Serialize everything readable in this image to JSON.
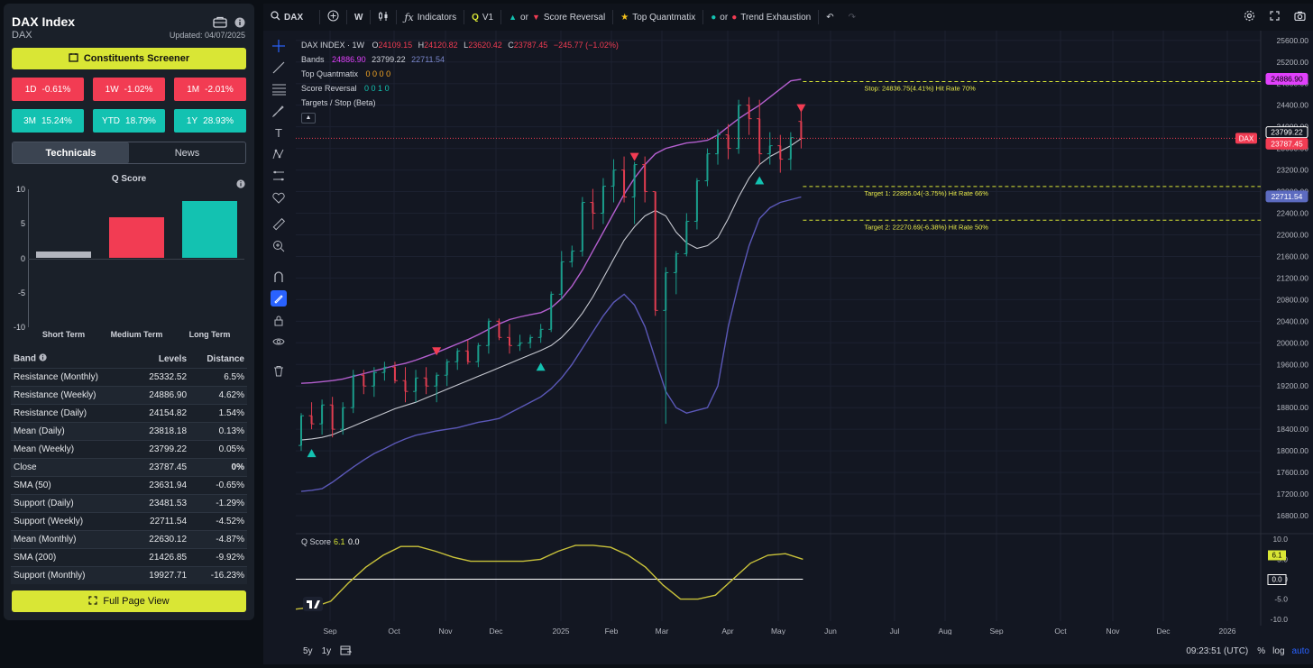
{
  "left_panel": {
    "title": "DAX Index",
    "subtitle": "DAX",
    "updated": "Updated: 04/07/2025",
    "screener_button": "Constituents Screener",
    "performance": [
      {
        "period": "1D",
        "value": "-0.61%",
        "color": "#f23c53"
      },
      {
        "period": "1W",
        "value": "-1.02%",
        "color": "#f23c53"
      },
      {
        "period": "1M",
        "value": "-2.01%",
        "color": "#f23c53"
      },
      {
        "period": "3M",
        "value": "15.24%",
        "color": "#13c2b1"
      },
      {
        "period": "YTD",
        "value": "18.79%",
        "color": "#13c2b1"
      },
      {
        "period": "1Y",
        "value": "28.93%",
        "color": "#13c2b1"
      }
    ],
    "tabs": [
      "Technicals",
      "News"
    ],
    "qscore_title": "Q Score",
    "qscore_axis": [
      "10",
      "5",
      "0",
      "-5",
      "-10"
    ],
    "qscore_bars": [
      {
        "label": "Short Term",
        "value": 1,
        "color": "#b2b5be"
      },
      {
        "label": "Medium Term",
        "value": 6,
        "color": "#f23c53"
      },
      {
        "label": "Long Term",
        "value": 8.3,
        "color": "#13c2b1"
      }
    ],
    "bands_header": {
      "band": "Band",
      "levels": "Levels",
      "distance": "Distance"
    },
    "bands": [
      {
        "band": "Resistance (Monthly)",
        "level": "25332.52",
        "distance": "6.5%",
        "sign": "pos"
      },
      {
        "band": "Resistance (Weekly)",
        "level": "24886.90",
        "distance": "4.62%",
        "sign": "pos"
      },
      {
        "band": "Resistance (Daily)",
        "level": "24154.82",
        "distance": "1.54%",
        "sign": "pos"
      },
      {
        "band": "Mean (Daily)",
        "level": "23818.18",
        "distance": "0.13%",
        "sign": "pos"
      },
      {
        "band": "Mean (Weekly)",
        "level": "23799.22",
        "distance": "0.05%",
        "sign": "pos"
      },
      {
        "band": "Close",
        "level": "23787.45",
        "distance": "0%",
        "sign": "neu"
      },
      {
        "band": "SMA (50)",
        "level": "23631.94",
        "distance": "-0.65%",
        "sign": "neg"
      },
      {
        "band": "Support (Daily)",
        "level": "23481.53",
        "distance": "-1.29%",
        "sign": "neg"
      },
      {
        "band": "Support (Weekly)",
        "level": "22711.54",
        "distance": "-4.52%",
        "sign": "neg"
      },
      {
        "band": "Mean (Monthly)",
        "level": "22630.12",
        "distance": "-4.87%",
        "sign": "neg"
      },
      {
        "band": "SMA (200)",
        "level": "21426.85",
        "distance": "-9.92%",
        "sign": "neg"
      },
      {
        "band": "Support (Monthly)",
        "level": "19927.71",
        "distance": "-16.23%",
        "sign": "neg"
      }
    ],
    "full_page_button": "Full Page View"
  },
  "toolbar": {
    "symbol": "DAX",
    "interval": "W",
    "indicators": "Indicators",
    "v1": "V1",
    "or": "or",
    "score_reversal": "Score Reversal",
    "top_quantmatix": "Top Quantmatix",
    "trend_exhaustion": "Trend Exhaustion"
  },
  "legend": {
    "symbol_line": "DAX INDEX · 1W",
    "o": "24109.15",
    "h": "24120.82",
    "l": "23620.42",
    "c": "23787.45",
    "chg": "−245.77 (−1.02%)",
    "bands_label": "Bands",
    "bands_values": [
      "24886.90",
      "23799.22",
      "22711.54"
    ],
    "top_q_label": "Top Quantmatix",
    "top_q_values": "0 0 0 0",
    "score_rev_label": "Score Reversal",
    "score_rev_values": "0 0 1 0",
    "targets_label": "Targets / Stop (Beta)"
  },
  "annotations": {
    "stop": "Stop: 24836.75(4.41%) Hit Rate 70%",
    "target1": "Target 1: 22895.04(-3.75%) Hit Rate 66%",
    "target2": "Target 2: 22270.69(-6.38%) Hit Rate 50%"
  },
  "price_axis": [
    "25600.00",
    "25200.00",
    "24800.00",
    "24400.00",
    "24000.00",
    "23600.00",
    "23200.00",
    "22800.00",
    "22400.00",
    "22000.00",
    "21600.00",
    "21200.00",
    "20800.00",
    "20400.00",
    "20000.00",
    "19600.00",
    "19200.00",
    "18800.00",
    "18400.00",
    "18000.00",
    "17600.00",
    "17200.00",
    "16800.00"
  ],
  "price_tags": [
    {
      "text": "24886.90",
      "color": "#e040fb"
    },
    {
      "text": "23799.22",
      "color": "#ffffff"
    },
    {
      "text": "23787.45",
      "color": "#f23c53"
    },
    {
      "text": "22711.54",
      "color": "#5c6bc0"
    }
  ],
  "dax_tag": "DAX",
  "time_axis": [
    "Sep",
    "Oct",
    "Nov",
    "Dec",
    "2025",
    "Feb",
    "Mar",
    "Apr",
    "May",
    "Jun",
    "Jul",
    "Aug",
    "Sep",
    "Oct",
    "Nov",
    "Dec",
    "2026"
  ],
  "qscore_pane": {
    "label": "Q Score",
    "value1": "6.1",
    "value2": "0.0",
    "axis": [
      "10.0",
      "5.0",
      "0.0",
      "-5.0",
      "-10.0"
    ],
    "tag_value": "6.1",
    "tag_zero": "0.0",
    "series": [
      -7.5,
      -7,
      -5.5,
      -1,
      3,
      6,
      8.2,
      8.2,
      7,
      5.5,
      4.5,
      4.5,
      4.5,
      4.5,
      5,
      7,
      8.5,
      8.5,
      8,
      6,
      3,
      -1.5,
      -5,
      -5,
      -4,
      0,
      4,
      6,
      6.4,
      5
    ]
  },
  "bottom": {
    "range1": "5y",
    "range2": "1y",
    "time": "09:23:51 (UTC)",
    "pct": "%",
    "log": "log",
    "auto": "auto"
  },
  "candles": [
    [
      18100,
      18700,
      18000,
      18650
    ],
    [
      18650,
      18900,
      18400,
      18500
    ],
    [
      18500,
      18950,
      18300,
      18850
    ],
    [
      18850,
      19000,
      18250,
      18400
    ],
    [
      18400,
      18900,
      18300,
      18800
    ],
    [
      18800,
      19500,
      18700,
      19400
    ],
    [
      19400,
      19500,
      19050,
      19200
    ],
    [
      19200,
      19550,
      19000,
      19450
    ],
    [
      19450,
      19650,
      19300,
      19550
    ],
    [
      19550,
      19650,
      19250,
      19300
    ],
    [
      19300,
      19550,
      18900,
      19100
    ],
    [
      19100,
      19500,
      18900,
      19350
    ],
    [
      19350,
      19550,
      19050,
      19200
    ],
    [
      19200,
      19450,
      18900,
      19400
    ],
    [
      19400,
      19700,
      19200,
      19650
    ],
    [
      19650,
      19900,
      19500,
      19850
    ],
    [
      19850,
      20050,
      19600,
      19650
    ],
    [
      19650,
      20000,
      19550,
      19950
    ],
    [
      19950,
      20450,
      19800,
      20400
    ],
    [
      20400,
      20450,
      20050,
      20100
    ],
    [
      20100,
      20350,
      19800,
      19950
    ],
    [
      19950,
      20150,
      19850,
      20000
    ],
    [
      20000,
      20150,
      19900,
      20100
    ],
    [
      20100,
      20350,
      20000,
      20250
    ],
    [
      20250,
      20950,
      20200,
      20900
    ],
    [
      20900,
      21700,
      20800,
      21500
    ],
    [
      21500,
      21800,
      21400,
      21700
    ],
    [
      21700,
      22700,
      21600,
      22600
    ],
    [
      22600,
      22850,
      22100,
      22400
    ],
    [
      22400,
      23050,
      22200,
      22900
    ],
    [
      22900,
      23400,
      22600,
      23200
    ],
    [
      23200,
      23450,
      22600,
      22700
    ],
    [
      22700,
      23350,
      22200,
      23300
    ],
    [
      23300,
      23450,
      22600,
      22800
    ],
    [
      22800,
      22800,
      20500,
      20600
    ],
    [
      20600,
      21400,
      18500,
      21300
    ],
    [
      21300,
      21700,
      20900,
      21650
    ],
    [
      21650,
      22400,
      21600,
      22250
    ],
    [
      22250,
      23050,
      22100,
      23000
    ],
    [
      23000,
      23600,
      22900,
      23500
    ],
    [
      23500,
      23950,
      23300,
      23850
    ],
    [
      23850,
      24050,
      23400,
      23600
    ],
    [
      23600,
      24500,
      23500,
      24400
    ],
    [
      24400,
      24550,
      23850,
      24150
    ],
    [
      24150,
      24500,
      23300,
      23500
    ],
    [
      23500,
      23900,
      23300,
      23650
    ],
    [
      23650,
      23850,
      23150,
      23400
    ],
    [
      23400,
      23900,
      23200,
      23800
    ],
    [
      24100,
      24300,
      23600,
      23787
    ]
  ],
  "upper_band": [
    19250,
    19260,
    19280,
    19300,
    19330,
    19380,
    19430,
    19480,
    19530,
    19580,
    19620,
    19680,
    19750,
    19820,
    19900,
    19980,
    20060,
    20150,
    20250,
    20350,
    20430,
    20480,
    20520,
    20560,
    20650,
    20820,
    21050,
    21350,
    21700,
    22050,
    22400,
    22750,
    23050,
    23300,
    23500,
    23600,
    23650,
    23700,
    23720,
    23750,
    23850,
    24000,
    24150,
    24280,
    24400,
    24550,
    24700,
    24850,
    24880
  ],
  "mid_band": [
    18200,
    18220,
    18250,
    18300,
    18380,
    18460,
    18540,
    18620,
    18700,
    18780,
    18840,
    18900,
    18980,
    19060,
    19140,
    19220,
    19300,
    19380,
    19460,
    19540,
    19620,
    19700,
    19780,
    19860,
    19950,
    20100,
    20300,
    20550,
    20850,
    21200,
    21550,
    21900,
    22150,
    22350,
    22450,
    22350,
    22050,
    21850,
    21750,
    21800,
    21950,
    22300,
    22700,
    23050,
    23300,
    23450,
    23550,
    23650,
    23780
  ],
  "lower_band": [
    17250,
    17270,
    17300,
    17420,
    17560,
    17700,
    17830,
    17950,
    18040,
    18140,
    18220,
    18290,
    18330,
    18370,
    18400,
    18430,
    18480,
    18530,
    18560,
    18600,
    18700,
    18800,
    18900,
    19000,
    19150,
    19350,
    19600,
    19900,
    20200,
    20500,
    20750,
    20900,
    20700,
    20300,
    19700,
    19100,
    18800,
    18700,
    18750,
    18800,
    19200,
    20300,
    21100,
    21800,
    22300,
    22500,
    22600,
    22650,
    22700
  ],
  "markers": [
    {
      "i": 1,
      "type": "up",
      "price": 17950
    },
    {
      "i": 13,
      "type": "down",
      "price": 19850
    },
    {
      "i": 23,
      "type": "up",
      "price": 19550
    },
    {
      "i": 32,
      "type": "down",
      "price": 23450
    },
    {
      "i": 44,
      "type": "up",
      "price": 23000
    },
    {
      "i": 48,
      "type": "down",
      "price": 24350
    }
  ]
}
